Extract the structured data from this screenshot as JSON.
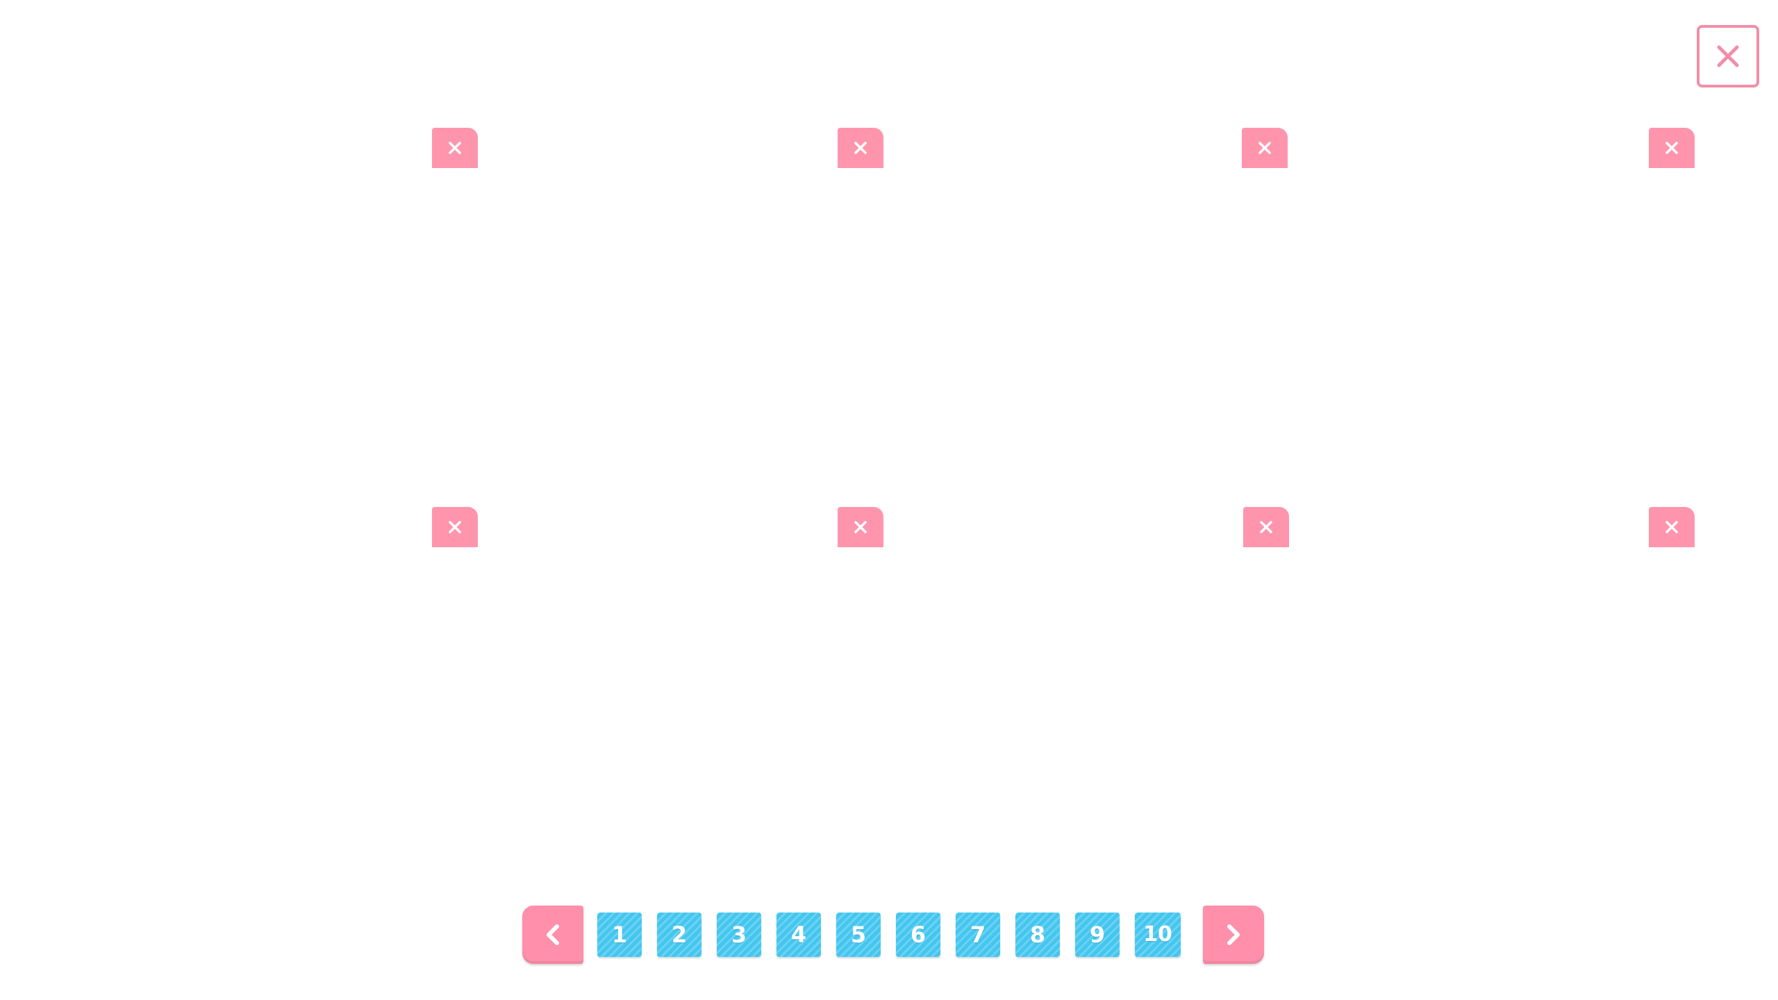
{
  "colors": {
    "pink": "#ff8fab",
    "pink_border": "#f28ea8",
    "blue": "#43c6ef",
    "background": "#ffffff"
  },
  "header": {
    "close_icon": "close-icon"
  },
  "slots": [
    {
      "delete_icon": "close-icon"
    },
    {
      "delete_icon": "close-icon"
    },
    {
      "delete_icon": "close-icon"
    },
    {
      "delete_icon": "close-icon"
    },
    {
      "delete_icon": "close-icon"
    },
    {
      "delete_icon": "close-icon"
    },
    {
      "delete_icon": "close-icon"
    },
    {
      "delete_icon": "close-icon"
    }
  ],
  "pagination": {
    "prev_icon": "chevron-left-icon",
    "next_icon": "chevron-right-icon",
    "pages": [
      "1",
      "2",
      "3",
      "4",
      "5",
      "6",
      "7",
      "8",
      "9",
      "10"
    ]
  }
}
